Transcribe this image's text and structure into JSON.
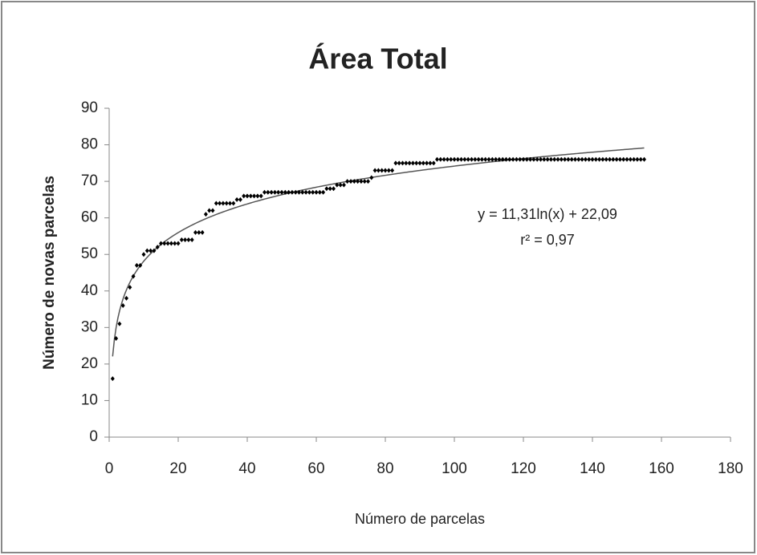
{
  "chart_data": {
    "type": "scatter",
    "title": "Área Total",
    "xlabel": "Número de parcelas",
    "ylabel": "Número de novas parcelas",
    "x": [
      1,
      2,
      3,
      4,
      5,
      6,
      7,
      8,
      9,
      10,
      11,
      12,
      13,
      14,
      15,
      16,
      17,
      18,
      19,
      20,
      21,
      22,
      23,
      24,
      25,
      26,
      27,
      28,
      29,
      30,
      31,
      32,
      33,
      34,
      35,
      36,
      37,
      38,
      39,
      40,
      41,
      42,
      43,
      44,
      45,
      46,
      47,
      48,
      49,
      50,
      51,
      52,
      53,
      54,
      55,
      56,
      57,
      58,
      59,
      60,
      61,
      62,
      63,
      64,
      65,
      66,
      67,
      68,
      69,
      70,
      71,
      72,
      73,
      74,
      75,
      76,
      77,
      78,
      79,
      80,
      81,
      82,
      83,
      84,
      85,
      86,
      87,
      88,
      89,
      90,
      91,
      92,
      93,
      94,
      95,
      96,
      97,
      98,
      99,
      100,
      101,
      102,
      103,
      104,
      105,
      106,
      107,
      108,
      109,
      110,
      111,
      112,
      113,
      114,
      115,
      116,
      117,
      118,
      119,
      120,
      121,
      122,
      123,
      124,
      125,
      126,
      127,
      128,
      129,
      130,
      131,
      132,
      133,
      134,
      135,
      136,
      137,
      138,
      139,
      140,
      141,
      142,
      143,
      144,
      145,
      146,
      147,
      148,
      149,
      150,
      151,
      152,
      153,
      154,
      155
    ],
    "values": [
      16,
      27,
      31,
      36,
      38,
      41,
      44,
      47,
      47,
      50,
      51,
      51,
      51,
      52,
      53,
      53,
      53,
      53,
      53,
      53,
      54,
      54,
      54,
      54,
      56,
      56,
      56,
      61,
      62,
      62,
      64,
      64,
      64,
      64,
      64,
      64,
      65,
      65,
      66,
      66,
      66,
      66,
      66,
      66,
      67,
      67,
      67,
      67,
      67,
      67,
      67,
      67,
      67,
      67,
      67,
      67,
      67,
      67,
      67,
      67,
      67,
      67,
      68,
      68,
      68,
      69,
      69,
      69,
      70,
      70,
      70,
      70,
      70,
      70,
      70,
      71,
      73,
      73,
      73,
      73,
      73,
      73,
      75,
      75,
      75,
      75,
      75,
      75,
      75,
      75,
      75,
      75,
      75,
      75,
      76,
      76,
      76,
      76,
      76,
      76,
      76,
      76,
      76,
      76,
      76,
      76,
      76,
      76,
      76,
      76,
      76,
      76,
      76,
      76,
      76,
      76,
      76,
      76,
      76,
      76,
      76,
      76,
      76,
      76,
      76,
      76,
      76,
      76,
      76,
      76,
      76,
      76,
      76,
      76,
      76,
      76,
      76,
      76,
      76,
      76,
      76,
      76,
      76,
      76,
      76,
      76,
      76,
      76,
      76,
      76,
      76,
      76,
      76,
      76,
      76
    ],
    "color": "#000000",
    "trendline": {
      "equation": "y = 11,31ln(x) + 22,09",
      "r2": "r² = 0,97",
      "a": 11.31,
      "b": 22.09,
      "color": "#555555"
    },
    "xlim": [
      0,
      180
    ],
    "xticks": [
      0,
      20,
      40,
      60,
      80,
      100,
      120,
      140,
      160,
      180
    ],
    "ylim": [
      0,
      90
    ],
    "yticks": [
      0,
      10,
      20,
      30,
      40,
      50,
      60,
      70,
      80,
      90
    ]
  }
}
